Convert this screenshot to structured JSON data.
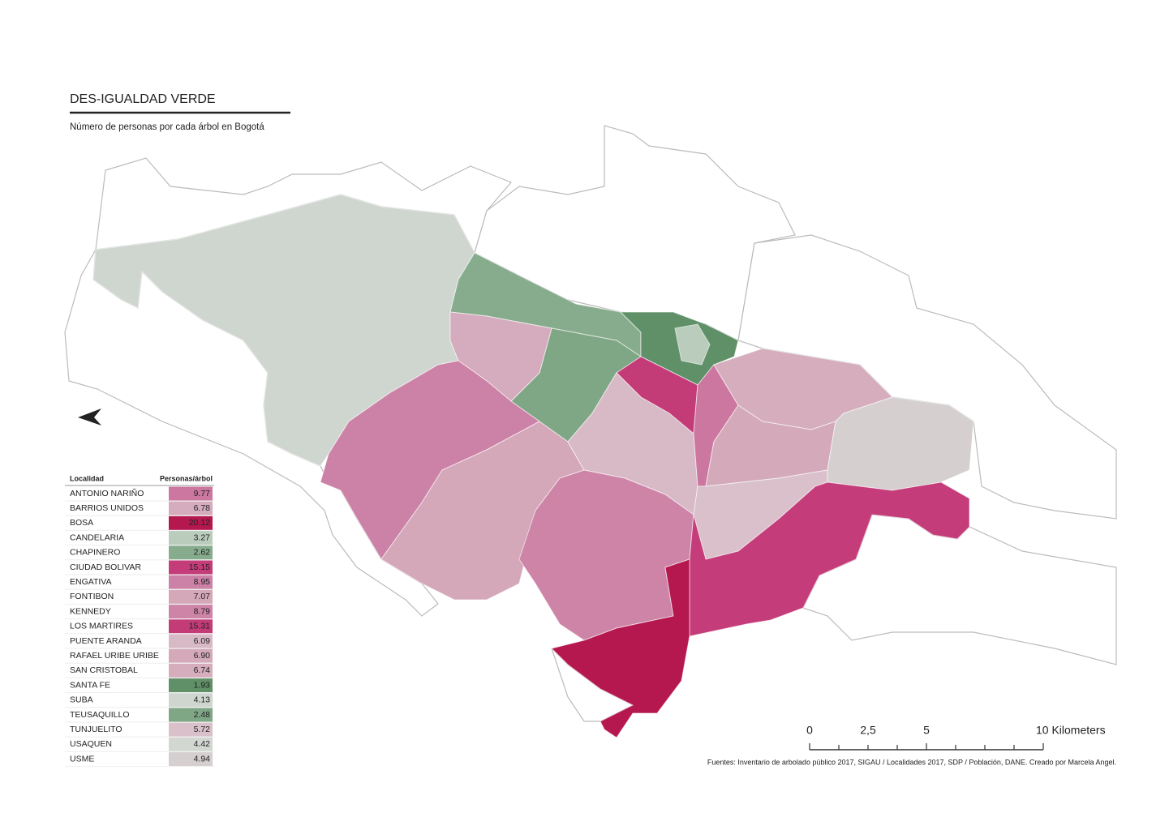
{
  "header": {
    "title": "DES-IGUALDAD VERDE",
    "subtitle": "Número de personas por cada árbol en Bogotá"
  },
  "legend_table": {
    "columns": [
      "Localidad",
      "Personas/árbol"
    ],
    "rows": [
      [
        "ANTONIO NARIÑO",
        "9.77"
      ],
      [
        "BARRIOS UNIDOS",
        "6.78"
      ],
      [
        "BOSA",
        "20.12"
      ],
      [
        "CANDELARIA",
        "3.27"
      ],
      [
        "CHAPINERO",
        "2.62"
      ],
      [
        "CIUDAD BOLIVAR",
        "15.15"
      ],
      [
        "ENGATIVA",
        "8.95"
      ],
      [
        "FONTIBON",
        "7.07"
      ],
      [
        "KENNEDY",
        "8.79"
      ],
      [
        "LOS MARTIRES",
        "15.31"
      ],
      [
        "PUENTE ARANDA",
        "6.09"
      ],
      [
        "RAFAEL URIBE URIBE",
        "6.90"
      ],
      [
        "SAN CRISTOBAL",
        "6.74"
      ],
      [
        "SANTA FE",
        "1.93"
      ],
      [
        "SUBA",
        "4.13"
      ],
      [
        "TEUSAQUILLO",
        "2.48"
      ],
      [
        "TUNJUELITO",
        "5.72"
      ],
      [
        "USAQUEN",
        "4.42"
      ],
      [
        "USME",
        "4.94"
      ]
    ]
  },
  "scale_bar": {
    "labels": [
      "0",
      "2,5",
      "5",
      "10 Kilometers"
    ]
  },
  "source": "Fuentes: Inventario de arbolado público 2017, SIGAU / Localidades 2017, SDP / Población, DANE. Creado por Marcela Angel."
}
